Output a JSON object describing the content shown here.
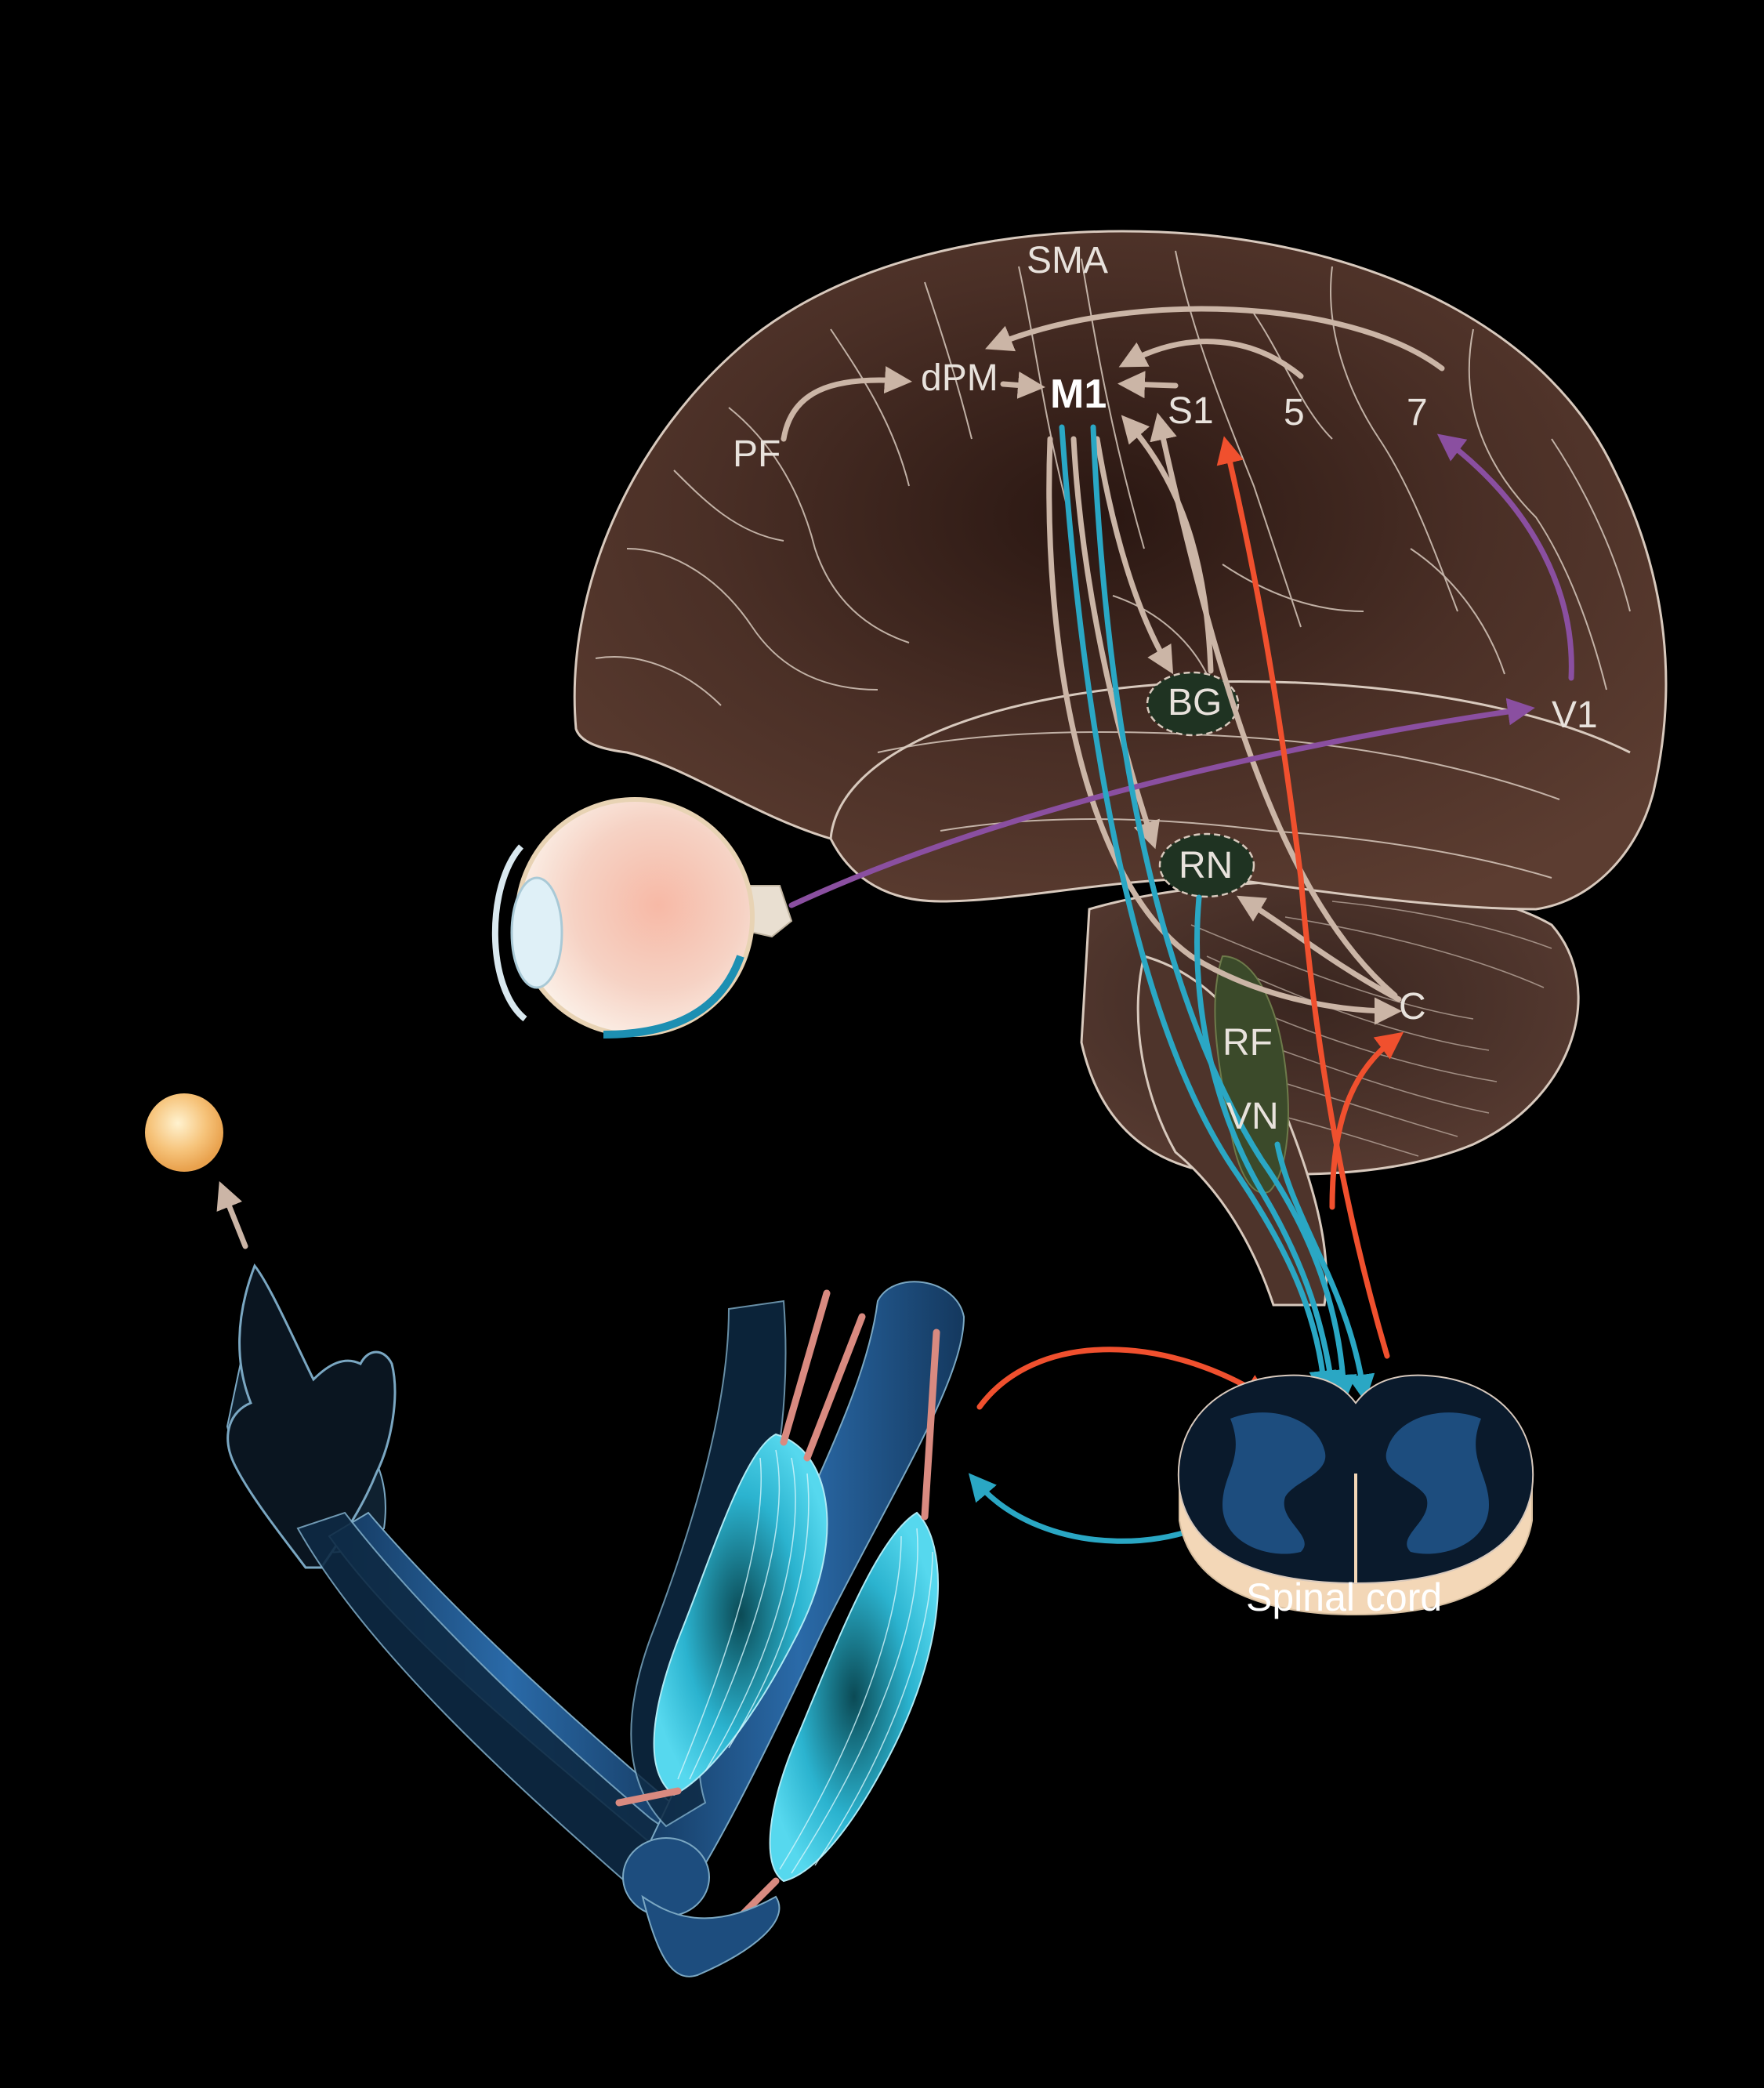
{
  "labels": {
    "sma": "SMA",
    "dpm": "dPM",
    "m1": "M1",
    "s1": "S1",
    "area5": "5",
    "area7": "7",
    "pf": "PF",
    "v1": "V1",
    "bg": "BG",
    "rn": "RN",
    "rf": "RF",
    "vn": "VN",
    "c": "C",
    "spinal_cord": "Spinal cord"
  },
  "colors": {
    "background": "#000000",
    "brain": "#4a2f26",
    "brain_sulci": "#d8c9bd",
    "cortical_arrow": "#cbb5a6",
    "descending_motor": "#2aa7c4",
    "ascending_sensory": "#f0502e",
    "visual_pathway": "#8a4fa0",
    "nucleus_fill": "#1f3322",
    "cord_gray_matter": "#1d4d7e",
    "target": "#f6c37a",
    "muscle": "#3ec2dc",
    "tendon": "#d98a80",
    "bone": "#1c4a7a"
  }
}
